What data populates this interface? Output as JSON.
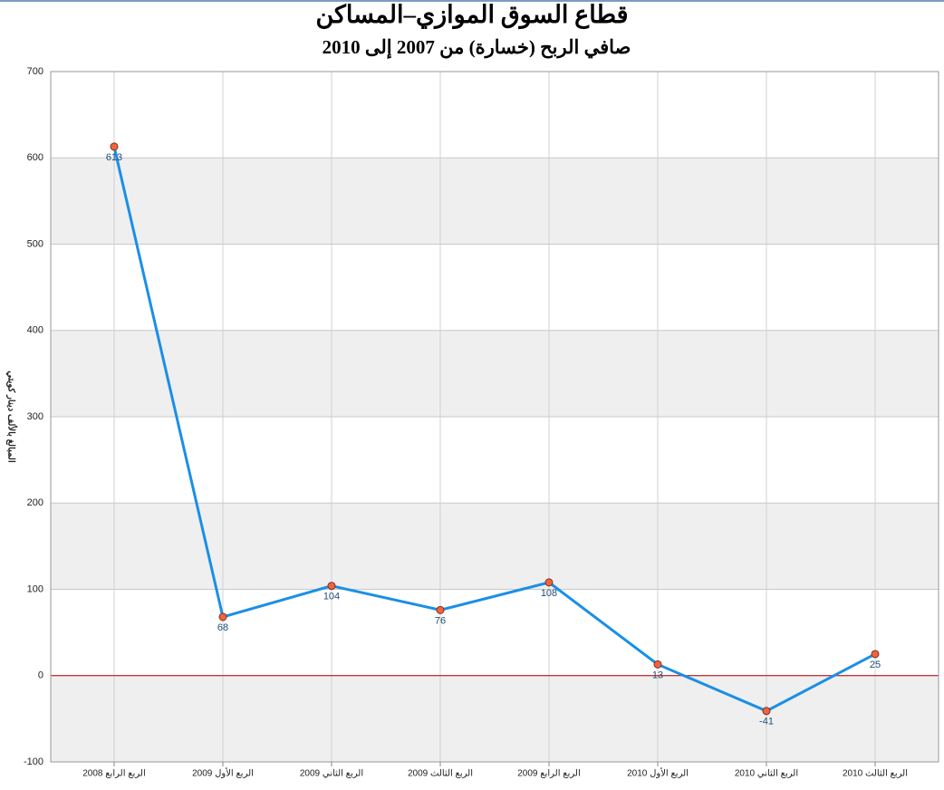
{
  "chart_data": {
    "type": "line",
    "title": "قطاع السوق الموازي–المساكن",
    "subtitle": "صافي الربح (خسارة) من 2007 إلى 2010",
    "y_label": "المبالغ بالألف دينار كويتي",
    "categories": [
      "الربع الرابع 2008",
      "الربع الأول 2009",
      "الربع الثاني 2009",
      "الربع الثالث 2009",
      "الربع الرابع 2009",
      "الربع الأول 2010",
      "الربع الثاني 2010",
      "الربع الثالث 2010"
    ],
    "values": [
      613,
      68,
      104,
      76,
      108,
      13,
      -41,
      25
    ],
    "color": "#1a8fe6",
    "marker_color": "#f0643c",
    "ylim": [
      -100,
      700
    ],
    "yticks": [
      -100,
      0,
      100,
      200,
      300,
      400,
      500,
      600,
      700
    ],
    "grid": true
  }
}
